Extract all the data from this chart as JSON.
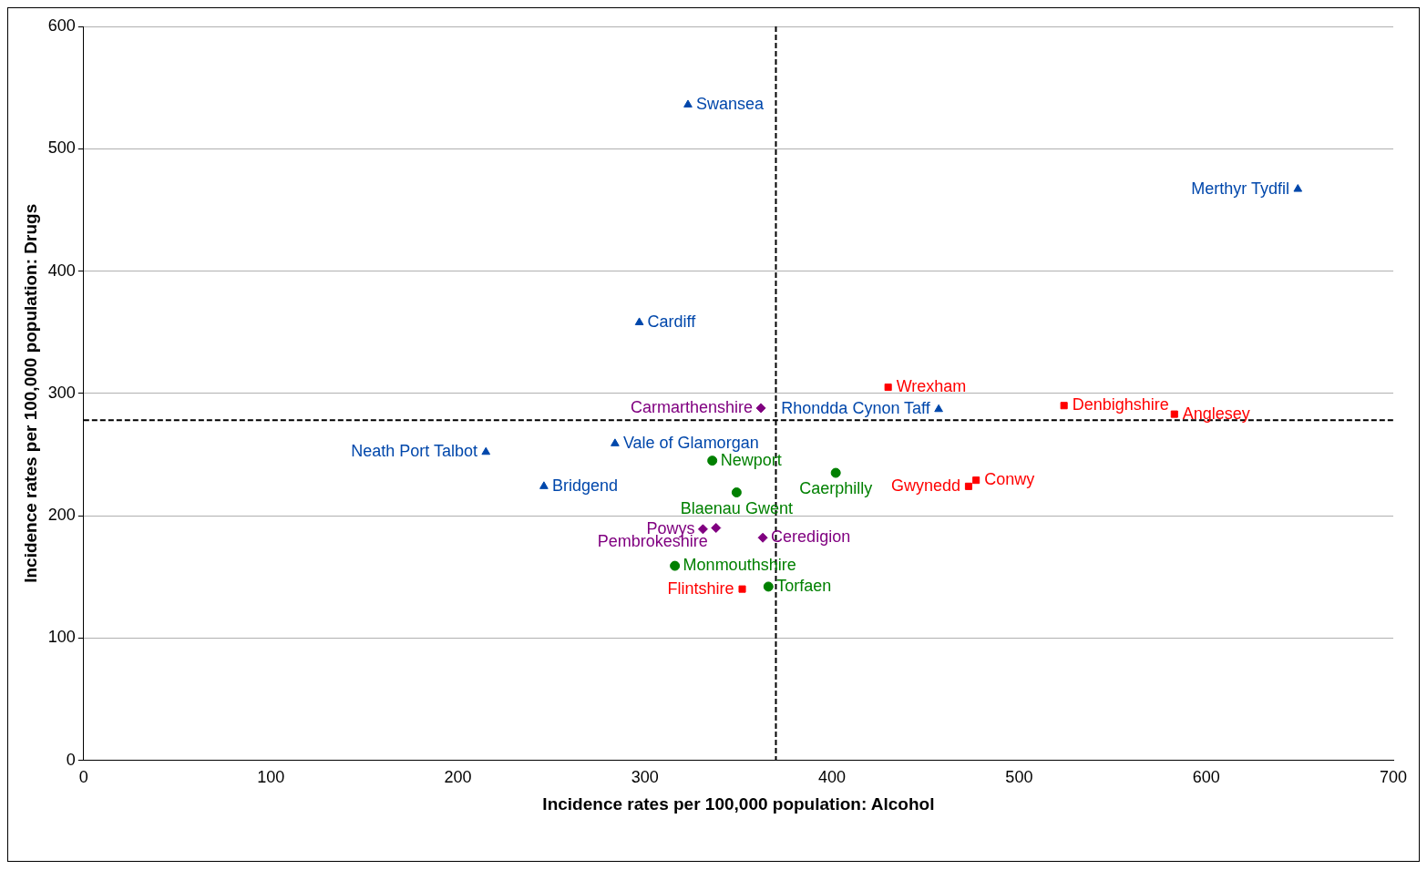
{
  "chart_data": {
    "type": "scatter",
    "xlabel": "Incidence rates per 100,000 population: Alcohol",
    "ylabel": "Incidence rates per 100,000 population: Drugs",
    "xlim": [
      0,
      700
    ],
    "xticks": [
      0,
      100,
      200,
      300,
      400,
      500,
      600,
      700
    ],
    "ylim": [
      0,
      600
    ],
    "yticks": [
      0,
      100,
      200,
      300,
      400,
      500,
      600
    ],
    "grid": "y",
    "legend": false,
    "ref_lines": [
      {
        "axis": "x",
        "value": 370,
        "color": "#000000",
        "line_style": "dashed"
      },
      {
        "axis": "y",
        "value": 278,
        "color": "#000000",
        "line_style": "dashed"
      }
    ],
    "series": [
      {
        "color": "#0047ab",
        "marker": "triangle",
        "x": [
          323,
          649,
          297,
          457,
          284,
          215,
          246
        ],
        "values": [
          536,
          467,
          358,
          287,
          259,
          252,
          224
        ],
        "value_labels": [
          "Swansea",
          "Merthyr Tydfil",
          "Cardiff",
          "Rhondda Cynon Taff",
          "Vale of Glamorgan",
          "Neath Port Talbot",
          "Bridgend"
        ]
      },
      {
        "color": "#ff0000",
        "marker": "square",
        "x": [
          430,
          524,
          583,
          477,
          473,
          352
        ],
        "values": [
          305,
          290,
          283,
          229,
          224,
          140
        ],
        "value_labels": [
          "Wrexham",
          "Denbighshire",
          "Anglesey",
          "Conwy",
          "Gwynedd",
          "Flintshire"
        ]
      },
      {
        "color": "#008000",
        "marker": "circle",
        "x": [
          336,
          402,
          349,
          316,
          366
        ],
        "values": [
          245,
          235,
          219,
          159,
          142
        ],
        "value_labels": [
          "Newport",
          "Caerphilly",
          "Blaenau Gwent",
          "Monmouthshire",
          "Torfaen"
        ]
      },
      {
        "color": "#800080",
        "marker": "diamond",
        "x": [
          362,
          338,
          331,
          363
        ],
        "values": [
          288,
          190,
          189,
          182
        ],
        "value_labels": [
          "Carmarthenshire",
          "Pembrokeshire",
          "Powys",
          "Ceredigion"
        ]
      }
    ]
  }
}
